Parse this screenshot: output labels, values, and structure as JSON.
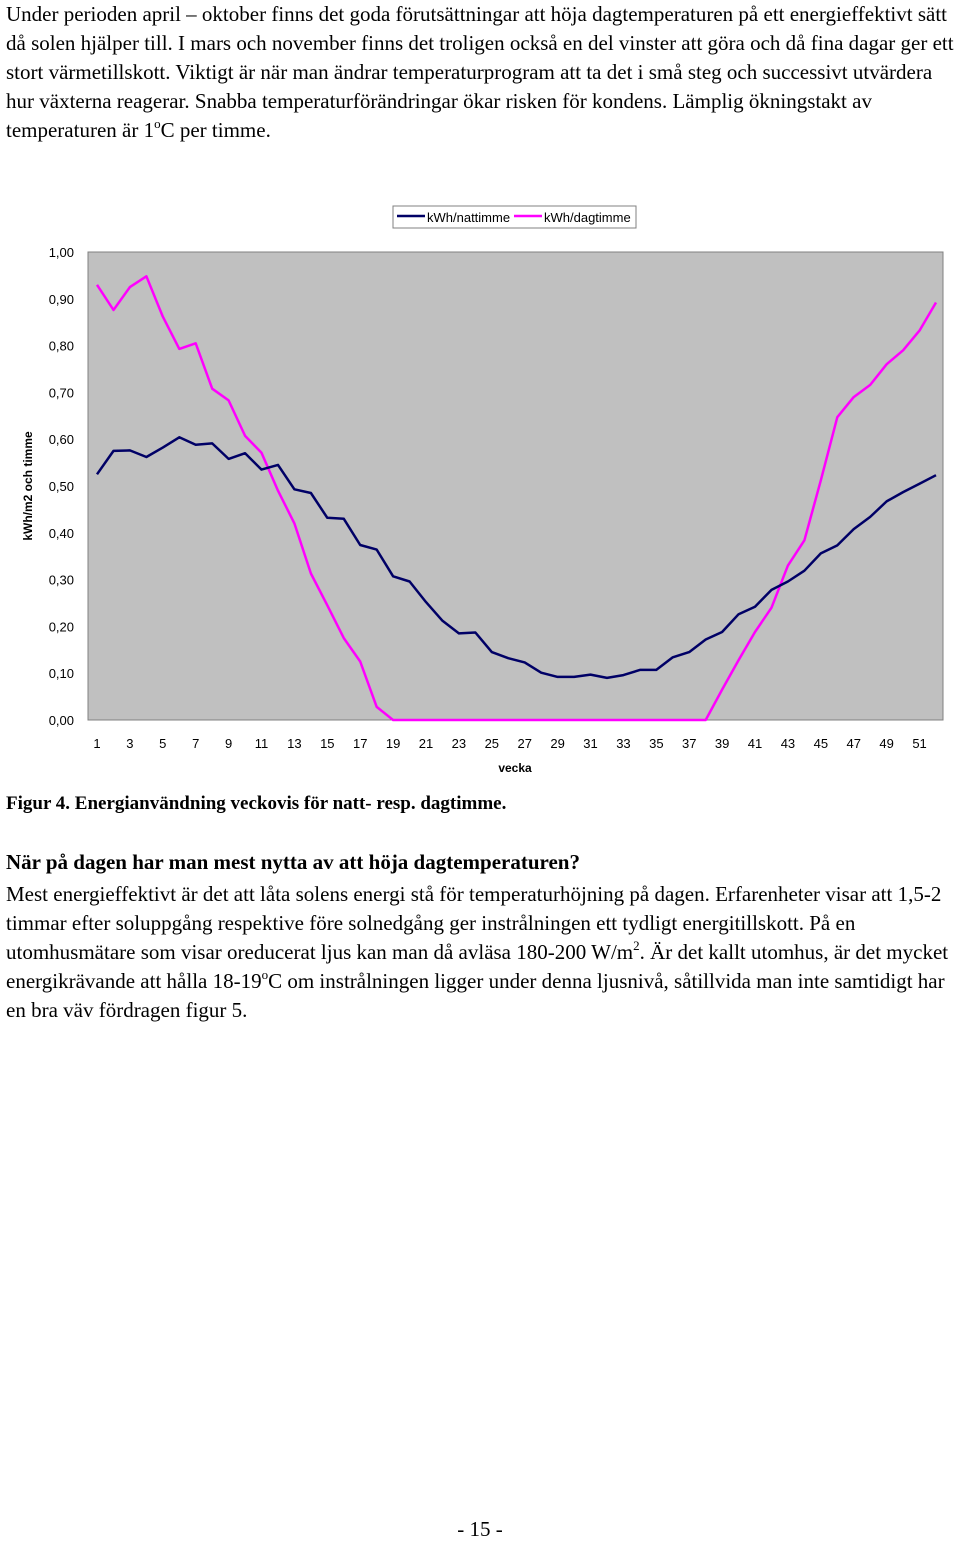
{
  "intro": {
    "text_before_sup": "Under perioden april – oktober finns det goda förutsättningar att höja dagtemperaturen på ett energieffektivt sätt då solen hjälper till. I mars och november finns det troligen också en del vinster att göra och då fina dagar ger ett stort värmetillskott. Viktigt är när man ändrar temperaturprogram att ta det i små steg och successivt utvärdera hur växterna reagerar. Snabba temperaturförändringar ökar risken för kondens. Lämplig ökningstakt av temperaturen är 1",
    "sup": "o",
    "text_after_sup": "C per timme."
  },
  "chart_data": {
    "type": "line",
    "title": "",
    "xlabel": "vecka",
    "ylabel": "kWh/m2 och timme",
    "ylim": [
      0,
      1.0
    ],
    "y_ticks": [
      "0,00",
      "0,10",
      "0,20",
      "0,30",
      "0,40",
      "0,50",
      "0,60",
      "0,70",
      "0,80",
      "0,90",
      "1,00"
    ],
    "x_ticks": [
      "1",
      "3",
      "5",
      "7",
      "9",
      "11",
      "13",
      "15",
      "17",
      "19",
      "21",
      "23",
      "25",
      "27",
      "29",
      "31",
      "33",
      "35",
      "37",
      "39",
      "41",
      "43",
      "45",
      "47",
      "49",
      "51"
    ],
    "x": [
      1,
      2,
      3,
      4,
      5,
      6,
      7,
      8,
      9,
      10,
      11,
      12,
      13,
      14,
      15,
      16,
      17,
      18,
      19,
      20,
      21,
      22,
      23,
      24,
      25,
      26,
      27,
      28,
      29,
      30,
      31,
      32,
      33,
      34,
      35,
      36,
      37,
      38,
      39,
      40,
      41,
      42,
      43,
      44,
      45,
      46,
      47,
      48,
      49,
      50,
      51,
      52
    ],
    "legend_position": "top-right",
    "grid": false,
    "plot_background": "#c0c0c0",
    "series": [
      {
        "name": "kWh/nattimme",
        "color": "#000066",
        "values": [
          0.525,
          0.575,
          0.576,
          0.562,
          0.582,
          0.604,
          0.588,
          0.591,
          0.558,
          0.57,
          0.535,
          0.545,
          0.493,
          0.485,
          0.432,
          0.43,
          0.374,
          0.364,
          0.307,
          0.296,
          0.252,
          0.212,
          0.185,
          0.187,
          0.145,
          0.132,
          0.123,
          0.101,
          0.092,
          0.092,
          0.097,
          0.09,
          0.096,
          0.107,
          0.107,
          0.134,
          0.145,
          0.172,
          0.188,
          0.226,
          0.242,
          0.278,
          0.296,
          0.319,
          0.356,
          0.373,
          0.408,
          0.434,
          0.467,
          0.487,
          0.505,
          0.523
        ]
      },
      {
        "name": "kWh/dagtimme",
        "color": "#ff00ff",
        "values": [
          0.93,
          0.876,
          0.925,
          0.948,
          0.862,
          0.793,
          0.805,
          0.708,
          0.683,
          0.607,
          0.571,
          0.49,
          0.42,
          0.313,
          0.245,
          0.175,
          0.125,
          0.028,
          0.0,
          0.0,
          0.0,
          0.0,
          0.0,
          0.0,
          0.0,
          0.0,
          0.0,
          0.0,
          0.0,
          0.0,
          0.0,
          0.0,
          0.0,
          0.0,
          0.0,
          0.0,
          0.0,
          0.0,
          0.065,
          0.128,
          0.188,
          0.24,
          0.33,
          0.384,
          0.512,
          0.647,
          0.69,
          0.716,
          0.76,
          0.79,
          0.832,
          0.892
        ]
      }
    ]
  },
  "caption": "Figur 4. Energianvändning veckovis för natt- resp. dagtimme.",
  "heading": "När på dagen har man mest nytta av att höja dagtemperaturen?",
  "body": {
    "text_part1": "Mest energieffektivt är det att låta solens energi stå för temperaturhöjning på dagen. Erfarenheter visar att 1,5-2 timmar efter soluppgång respektive före solnedgång ger instrålningen ett tydligt energitillskott. På en utomhusmätare som visar oreducerat ljus kan man då avläsa 180-200 W/m",
    "sup1": "2",
    "text_part2": ". Är det kallt utomhus, är det mycket energikrävande att hålla 18-19",
    "sup2": "o",
    "text_part3": "C om instrålningen ligger under denna ljusnivå, såtillvida man inte samtidigt har en bra väv fördragen figur 5."
  },
  "page_number": "- 15 -"
}
